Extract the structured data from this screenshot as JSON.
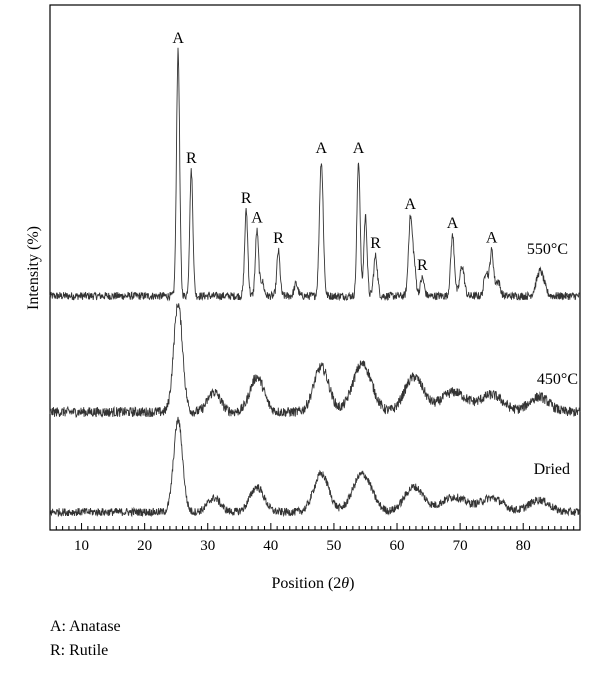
{
  "chart_data": {
    "type": "line",
    "xlabel": "Position (2θ)",
    "ylabel": "Intensity (%)",
    "xlim": [
      5,
      89
    ],
    "xticks": [
      10,
      20,
      30,
      40,
      50,
      60,
      70,
      80
    ],
    "grid": false,
    "series": [
      {
        "name": "550°C",
        "peaks": [
          {
            "x": 25.3,
            "h": 245,
            "w": 0.25
          },
          {
            "x": 27.4,
            "h": 125,
            "w": 0.25
          },
          {
            "x": 36.1,
            "h": 85,
            "w": 0.25
          },
          {
            "x": 37.8,
            "h": 65,
            "w": 0.25
          },
          {
            "x": 38.6,
            "h": 15,
            "w": 0.3
          },
          {
            "x": 41.2,
            "h": 45,
            "w": 0.25
          },
          {
            "x": 44.0,
            "h": 12,
            "w": 0.3
          },
          {
            "x": 48.0,
            "h": 135,
            "w": 0.3
          },
          {
            "x": 53.9,
            "h": 135,
            "w": 0.25
          },
          {
            "x": 55.0,
            "h": 80,
            "w": 0.25
          },
          {
            "x": 56.6,
            "h": 40,
            "w": 0.3
          },
          {
            "x": 62.1,
            "h": 75,
            "w": 0.3
          },
          {
            "x": 62.7,
            "h": 30,
            "w": 0.3
          },
          {
            "x": 64.0,
            "h": 18,
            "w": 0.3
          },
          {
            "x": 68.8,
            "h": 60,
            "w": 0.3
          },
          {
            "x": 70.3,
            "h": 30,
            "w": 0.35
          },
          {
            "x": 74.1,
            "h": 25,
            "w": 0.3
          },
          {
            "x": 75.0,
            "h": 45,
            "w": 0.3
          },
          {
            "x": 76.0,
            "h": 15,
            "w": 0.35
          },
          {
            "x": 82.7,
            "h": 25,
            "w": 0.6
          }
        ]
      },
      {
        "name": "450°C",
        "peaks": [
          {
            "x": 25.3,
            "h": 108,
            "w": 0.7
          },
          {
            "x": 31.0,
            "h": 20,
            "w": 1.0
          },
          {
            "x": 37.8,
            "h": 35,
            "w": 1.1
          },
          {
            "x": 48.0,
            "h": 45,
            "w": 1.2
          },
          {
            "x": 54.5,
            "h": 48,
            "w": 1.5
          },
          {
            "x": 62.7,
            "h": 35,
            "w": 1.5
          },
          {
            "x": 69.0,
            "h": 20,
            "w": 2.0
          },
          {
            "x": 75.0,
            "h": 17,
            "w": 1.8
          },
          {
            "x": 82.5,
            "h": 15,
            "w": 1.6
          }
        ]
      },
      {
        "name": "Dried",
        "peaks": [
          {
            "x": 25.3,
            "h": 92,
            "w": 0.7
          },
          {
            "x": 31.0,
            "h": 14,
            "w": 1.0
          },
          {
            "x": 37.8,
            "h": 25,
            "w": 1.1
          },
          {
            "x": 48.0,
            "h": 38,
            "w": 1.2
          },
          {
            "x": 54.5,
            "h": 38,
            "w": 1.5
          },
          {
            "x": 62.7,
            "h": 25,
            "w": 1.5
          },
          {
            "x": 69.0,
            "h": 15,
            "w": 2.0
          },
          {
            "x": 75.0,
            "h": 14,
            "w": 1.8
          },
          {
            "x": 82.5,
            "h": 12,
            "w": 1.6
          }
        ]
      }
    ],
    "annotations": [
      {
        "text": "A",
        "x": 25.3
      },
      {
        "text": "R",
        "x": 27.4
      },
      {
        "text": "R",
        "x": 36.1
      },
      {
        "text": "A",
        "x": 37.8
      },
      {
        "text": "R",
        "x": 41.2
      },
      {
        "text": "A",
        "x": 48.0
      },
      {
        "text": "A",
        "x": 53.9
      },
      {
        "text": "R",
        "x": 56.6
      },
      {
        "text": "A",
        "x": 62.1
      },
      {
        "text": "R",
        "x": 64.0
      },
      {
        "text": "A",
        "x": 68.8
      },
      {
        "text": "A",
        "x": 75.0
      }
    ]
  },
  "legend": [
    {
      "key": "A:",
      "label": "Anatase"
    },
    {
      "key": "R:",
      "label": "Rutile"
    }
  ]
}
